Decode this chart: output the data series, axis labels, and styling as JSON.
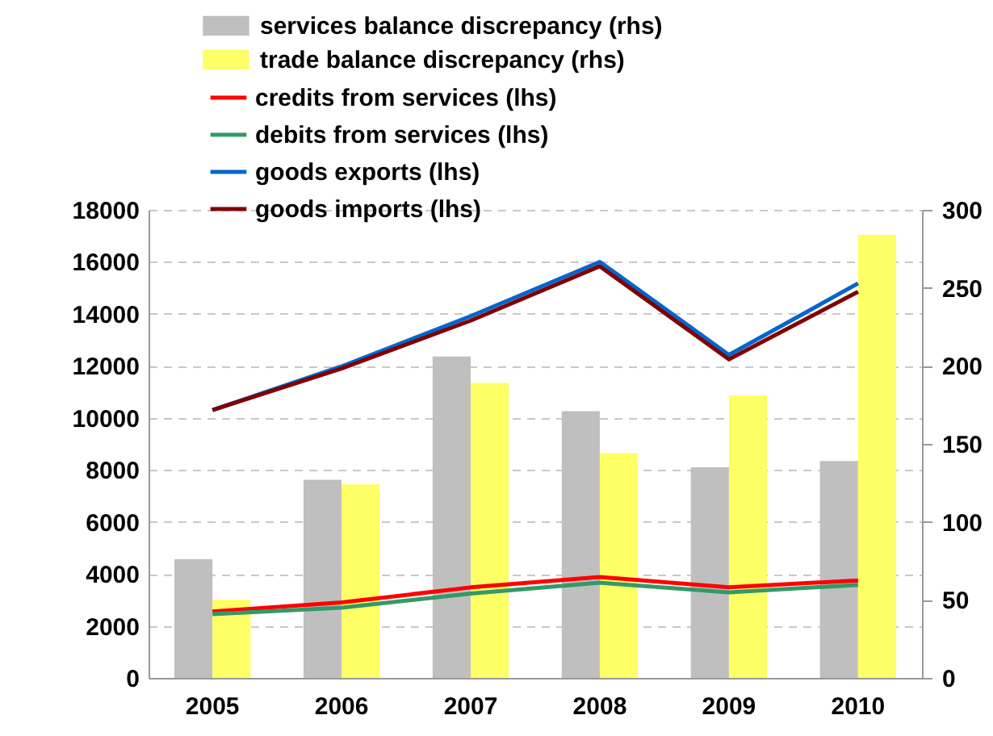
{
  "chart_data": {
    "type": "bar",
    "categories": [
      "2005",
      "2006",
      "2007",
      "2008",
      "2009",
      "2010"
    ],
    "series": [
      {
        "name": "services balance discrepancy (rhs)",
        "axis": "y2",
        "color": "#bfbfbf",
        "values": [
          76,
          127,
          206,
          171,
          135,
          139
        ]
      },
      {
        "name": "trade balance discrepancy (rhs)",
        "axis": "y2",
        "color": "#ffff66",
        "values": [
          50,
          124,
          189,
          144,
          181,
          284
        ]
      },
      {
        "name": "credits from services (lhs)",
        "type": "line",
        "color": "#ff0000",
        "values": [
          2550,
          2900,
          3480,
          3880,
          3480,
          3750
        ]
      },
      {
        "name": "debits from services (lhs)",
        "type": "line",
        "color": "#339966",
        "values": [
          2450,
          2700,
          3240,
          3660,
          3290,
          3580
        ]
      },
      {
        "name": "goods exports (lhs)",
        "type": "line",
        "color": "#0066cc",
        "values": [
          10300,
          11980,
          13910,
          16000,
          12420,
          15170
        ]
      },
      {
        "name": "goods imports (lhs)",
        "type": "line",
        "color": "#800000",
        "values": [
          10300,
          11900,
          13740,
          15830,
          12250,
          14850
        ]
      }
    ],
    "ylim": [
      0,
      18000
    ],
    "yticks": [
      0,
      2000,
      4000,
      6000,
      8000,
      10000,
      12000,
      14000,
      16000,
      18000
    ],
    "y2lim": [
      0,
      300
    ],
    "y2ticks": [
      0,
      50,
      100,
      150,
      200,
      250,
      300
    ],
    "grid": "y",
    "legend": "top"
  }
}
